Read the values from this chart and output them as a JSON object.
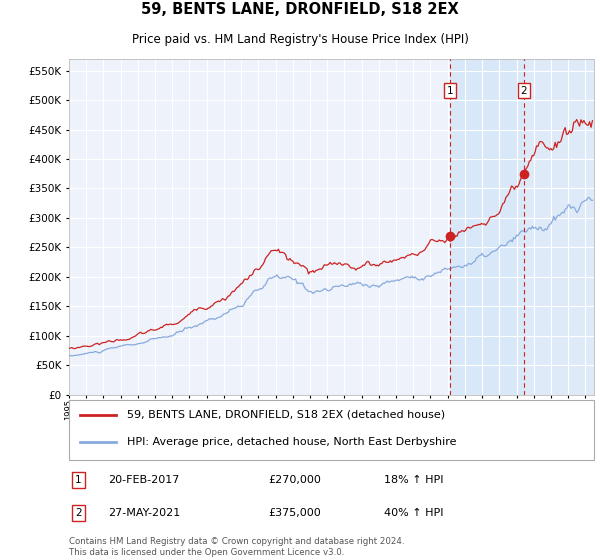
{
  "title": "59, BENTS LANE, DRONFIELD, S18 2EX",
  "subtitle": "Price paid vs. HM Land Registry's House Price Index (HPI)",
  "legend_label_red": "59, BENTS LANE, DRONFIELD, S18 2EX (detached house)",
  "legend_label_blue": "HPI: Average price, detached house, North East Derbyshire",
  "annotation1_label": "1",
  "annotation1_date": "20-FEB-2017",
  "annotation1_price": "£270,000",
  "annotation1_hpi": "18% ↑ HPI",
  "annotation2_label": "2",
  "annotation2_date": "27-MAY-2021",
  "annotation2_price": "£375,000",
  "annotation2_hpi": "40% ↑ HPI",
  "purchase1_year": 2017.13,
  "purchase1_value_red": 270000,
  "purchase2_year": 2021.41,
  "purchase2_value_red": 375000,
  "ylim": [
    0,
    570000
  ],
  "xlim_start": 1995.0,
  "xlim_end": 2025.5,
  "footer_line1": "Contains HM Land Registry data © Crown copyright and database right 2024.",
  "footer_line2": "This data is licensed under the Open Government Licence v3.0.",
  "background_color": "#eef2fb",
  "grid_color": "#ffffff",
  "red_color": "#cc2222",
  "blue_color": "#88aadd",
  "highlight_color": "#d8e8f8"
}
